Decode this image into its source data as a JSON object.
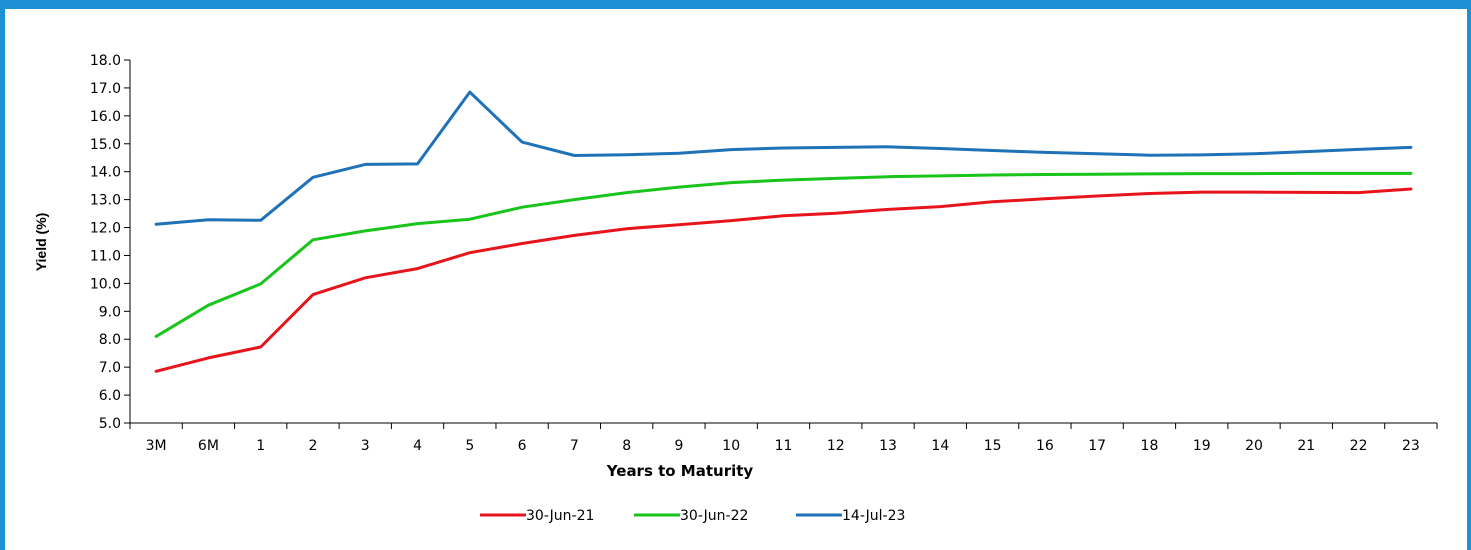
{
  "chart_data": {
    "type": "line",
    "title": "",
    "xlabel": "Years to Maturity",
    "ylabel": "Yield (%)",
    "ylim": [
      5.0,
      18.0
    ],
    "ytick_step": 1.0,
    "yticks": [
      "5.0",
      "6.0",
      "7.0",
      "8.0",
      "9.0",
      "10.0",
      "11.0",
      "12.0",
      "13.0",
      "14.0",
      "15.0",
      "16.0",
      "17.0",
      "18.0"
    ],
    "categories": [
      "3M",
      "6M",
      "1",
      "2",
      "3",
      "4",
      "5",
      "6",
      "7",
      "8",
      "9",
      "10",
      "11",
      "12",
      "13",
      "14",
      "15",
      "16",
      "17",
      "18",
      "19",
      "20",
      "21",
      "22",
      "23"
    ],
    "grid": false,
    "legend_position": "bottom",
    "series": [
      {
        "name": "30-Jun-21",
        "color": "#e8141b",
        "values": [
          6.85,
          7.33,
          7.72,
          9.6,
          10.2,
          10.53,
          11.1,
          11.43,
          11.72,
          11.96,
          12.1,
          12.25,
          12.42,
          12.51,
          12.65,
          12.75,
          12.92,
          13.03,
          13.13,
          13.22,
          13.27,
          13.27,
          13.26,
          13.25,
          13.38
        ]
      },
      {
        "name": "30-Jun-22",
        "color": "#19c41b",
        "values": [
          8.1,
          9.22,
          9.98,
          11.56,
          11.88,
          12.14,
          12.3,
          12.73,
          13.0,
          13.25,
          13.45,
          13.61,
          13.7,
          13.76,
          13.82,
          13.85,
          13.88,
          13.9,
          13.91,
          13.92,
          13.93,
          13.93,
          13.94,
          13.94,
          13.94
        ]
      },
      {
        "name": "14-Jul-23",
        "color": "#1f72b8",
        "values": [
          12.12,
          12.28,
          12.26,
          13.8,
          14.26,
          14.28,
          16.85,
          15.06,
          14.58,
          14.61,
          14.66,
          14.79,
          14.85,
          14.87,
          14.89,
          14.83,
          14.76,
          14.69,
          14.64,
          14.59,
          14.6,
          14.64,
          14.72,
          14.8,
          14.87
        ]
      }
    ]
  }
}
